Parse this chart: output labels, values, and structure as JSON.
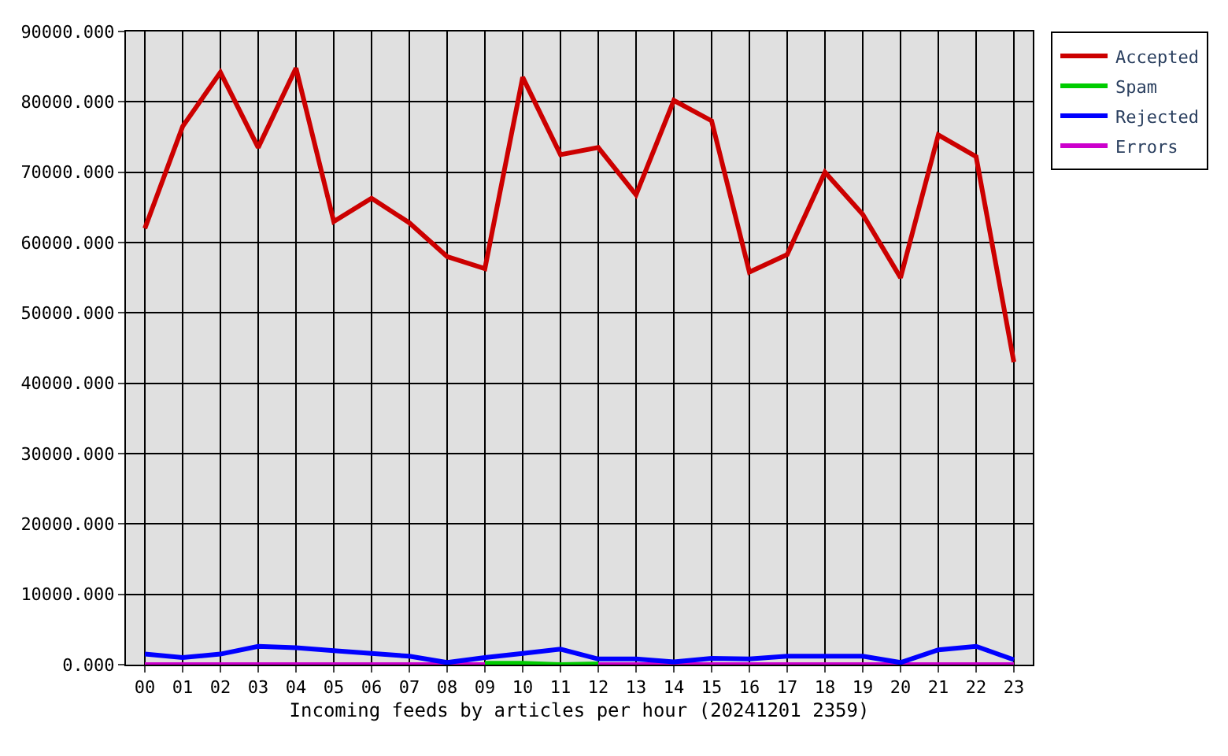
{
  "chart_data": {
    "type": "line",
    "xlabel": "Incoming feeds by articles per hour (20241201 2359)",
    "categories": [
      "00",
      "01",
      "02",
      "03",
      "04",
      "05",
      "06",
      "07",
      "08",
      "09",
      "10",
      "11",
      "12",
      "13",
      "14",
      "15",
      "16",
      "17",
      "18",
      "19",
      "20",
      "21",
      "22",
      "23"
    ],
    "series": [
      {
        "name": "Accepted",
        "color": "#cc0000",
        "values": [
          62000,
          76500,
          84200,
          73500,
          84800,
          63000,
          66300,
          62800,
          58000,
          56300,
          83500,
          72500,
          73500,
          66800,
          80200,
          77300,
          55800,
          58300,
          70000,
          64000,
          55000,
          75300,
          72200,
          43000
        ]
      },
      {
        "name": "Spam",
        "color": "#00cc00",
        "values": [
          null,
          null,
          null,
          null,
          null,
          null,
          null,
          null,
          null,
          200,
          200,
          0,
          100,
          null,
          null,
          null,
          null,
          null,
          null,
          null,
          null,
          null,
          null,
          null
        ]
      },
      {
        "name": "Rejected",
        "color": "#0000ff",
        "values": [
          1500,
          1000,
          1500,
          2600,
          2400,
          2000,
          1600,
          1200,
          300,
          1000,
          1600,
          2200,
          800,
          800,
          400,
          900,
          800,
          1200,
          1200,
          1200,
          300,
          2100,
          2600,
          700
        ]
      },
      {
        "name": "Errors",
        "color": "#cc00cc",
        "values": [
          0,
          0,
          0,
          0,
          0,
          0,
          0,
          0,
          0,
          0,
          0,
          0,
          0,
          0,
          0,
          0,
          0,
          0,
          0,
          0,
          0,
          0,
          0,
          0
        ]
      }
    ],
    "ylim": [
      0,
      90000
    ],
    "yticks": [
      {
        "value": 0,
        "label": "0.000"
      },
      {
        "value": 10000,
        "label": "10000.000"
      },
      {
        "value": 20000,
        "label": "20000.000"
      },
      {
        "value": 30000,
        "label": "30000.000"
      },
      {
        "value": 40000,
        "label": "40000.000"
      },
      {
        "value": 50000,
        "label": "50000.000"
      },
      {
        "value": 60000,
        "label": "60000.000"
      },
      {
        "value": 70000,
        "label": "70000.000"
      },
      {
        "value": 80000,
        "label": "80000.000"
      },
      {
        "value": 90000,
        "label": "90000.000"
      }
    ],
    "grid": true,
    "legend": "top right",
    "line_style": "solid"
  }
}
